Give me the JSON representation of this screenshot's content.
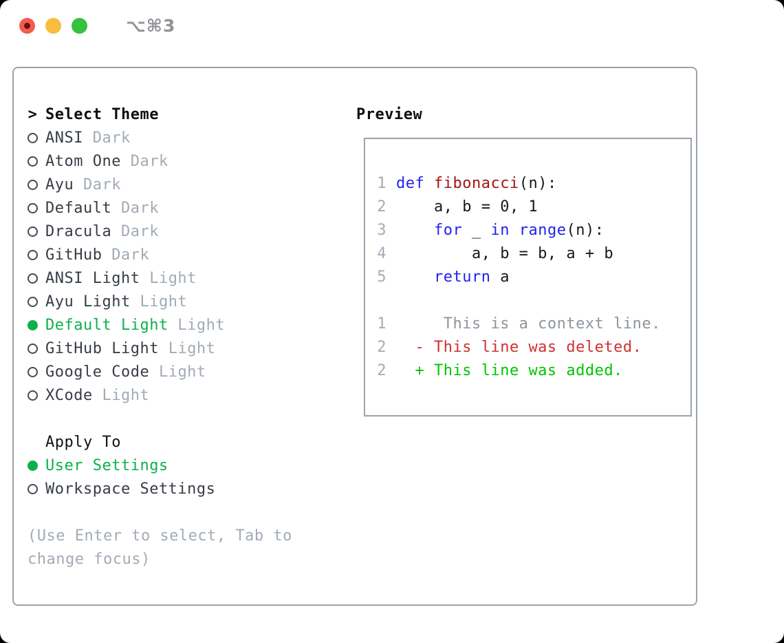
{
  "window": {
    "title": "⌥⌘3",
    "traffic_lights": [
      "close",
      "minimize",
      "zoom"
    ]
  },
  "colors": {
    "selected_green": "#0db14b",
    "keyword_blue": "#2121f0",
    "function_red": "#a31515",
    "diff_deleted_red": "#cd3131",
    "diff_added_green": "#00c400",
    "muted_gray": "#a2abb5",
    "border_gray": "#9aa3ae"
  },
  "theme_menu": {
    "prompt": ">",
    "header": "Select Theme",
    "themes": [
      {
        "name": "ANSI",
        "variant": "Dark",
        "selected": false
      },
      {
        "name": "Atom One",
        "variant": "Dark",
        "selected": false
      },
      {
        "name": "Ayu",
        "variant": "Dark",
        "selected": false
      },
      {
        "name": "Default",
        "variant": "Dark",
        "selected": false
      },
      {
        "name": "Dracula",
        "variant": "Dark",
        "selected": false
      },
      {
        "name": "GitHub",
        "variant": "Dark",
        "selected": false
      },
      {
        "name": "ANSI Light",
        "variant": "Light",
        "selected": false
      },
      {
        "name": "Ayu Light",
        "variant": "Light",
        "selected": false
      },
      {
        "name": "Default Light",
        "variant": "Light",
        "selected": true
      },
      {
        "name": "GitHub Light",
        "variant": "Light",
        "selected": false
      },
      {
        "name": "Google Code",
        "variant": "Light",
        "selected": false
      },
      {
        "name": "XCode",
        "variant": "Light",
        "selected": false
      }
    ]
  },
  "apply_to": {
    "header": "Apply To",
    "options": [
      {
        "name": "User Settings",
        "selected": true
      },
      {
        "name": "Workspace Settings",
        "selected": false
      }
    ]
  },
  "hint": {
    "line1": "(Use Enter to select, Tab to",
    "line2": "change focus)"
  },
  "preview": {
    "header": "Preview",
    "code_lines": [
      {
        "num": "1",
        "parts": [
          {
            "t": "def ",
            "c": "kw"
          },
          {
            "t": "fibonacci",
            "c": "fn"
          },
          {
            "t": "(n):",
            "c": "pl"
          }
        ]
      },
      {
        "num": "2",
        "parts": [
          {
            "t": "    a, b = 0, 1",
            "c": "pl"
          }
        ]
      },
      {
        "num": "3",
        "parts": [
          {
            "t": "    ",
            "c": "pl"
          },
          {
            "t": "for",
            "c": "kw"
          },
          {
            "t": " _ ",
            "c": "pl"
          },
          {
            "t": "in",
            "c": "kw"
          },
          {
            "t": " ",
            "c": "pl"
          },
          {
            "t": "range",
            "c": "kw"
          },
          {
            "t": "(n):",
            "c": "pl"
          }
        ]
      },
      {
        "num": "4",
        "parts": [
          {
            "t": "        a, b = b, a + b",
            "c": "pl"
          }
        ]
      },
      {
        "num": "5",
        "parts": [
          {
            "t": "    ",
            "c": "pl"
          },
          {
            "t": "return",
            "c": "kw"
          },
          {
            "t": " a",
            "c": "pl"
          }
        ]
      },
      {
        "num": "",
        "parts": []
      },
      {
        "num": "1",
        "parts": [
          {
            "t": "     This is a context line.",
            "c": "ctx"
          }
        ]
      },
      {
        "num": "2",
        "parts": [
          {
            "t": "  ",
            "c": "pl"
          },
          {
            "t": "- This line was deleted.",
            "c": "del"
          }
        ]
      },
      {
        "num": "2",
        "parts": [
          {
            "t": "  ",
            "c": "pl"
          },
          {
            "t": "+ This line was added.",
            "c": "add"
          }
        ]
      }
    ]
  }
}
